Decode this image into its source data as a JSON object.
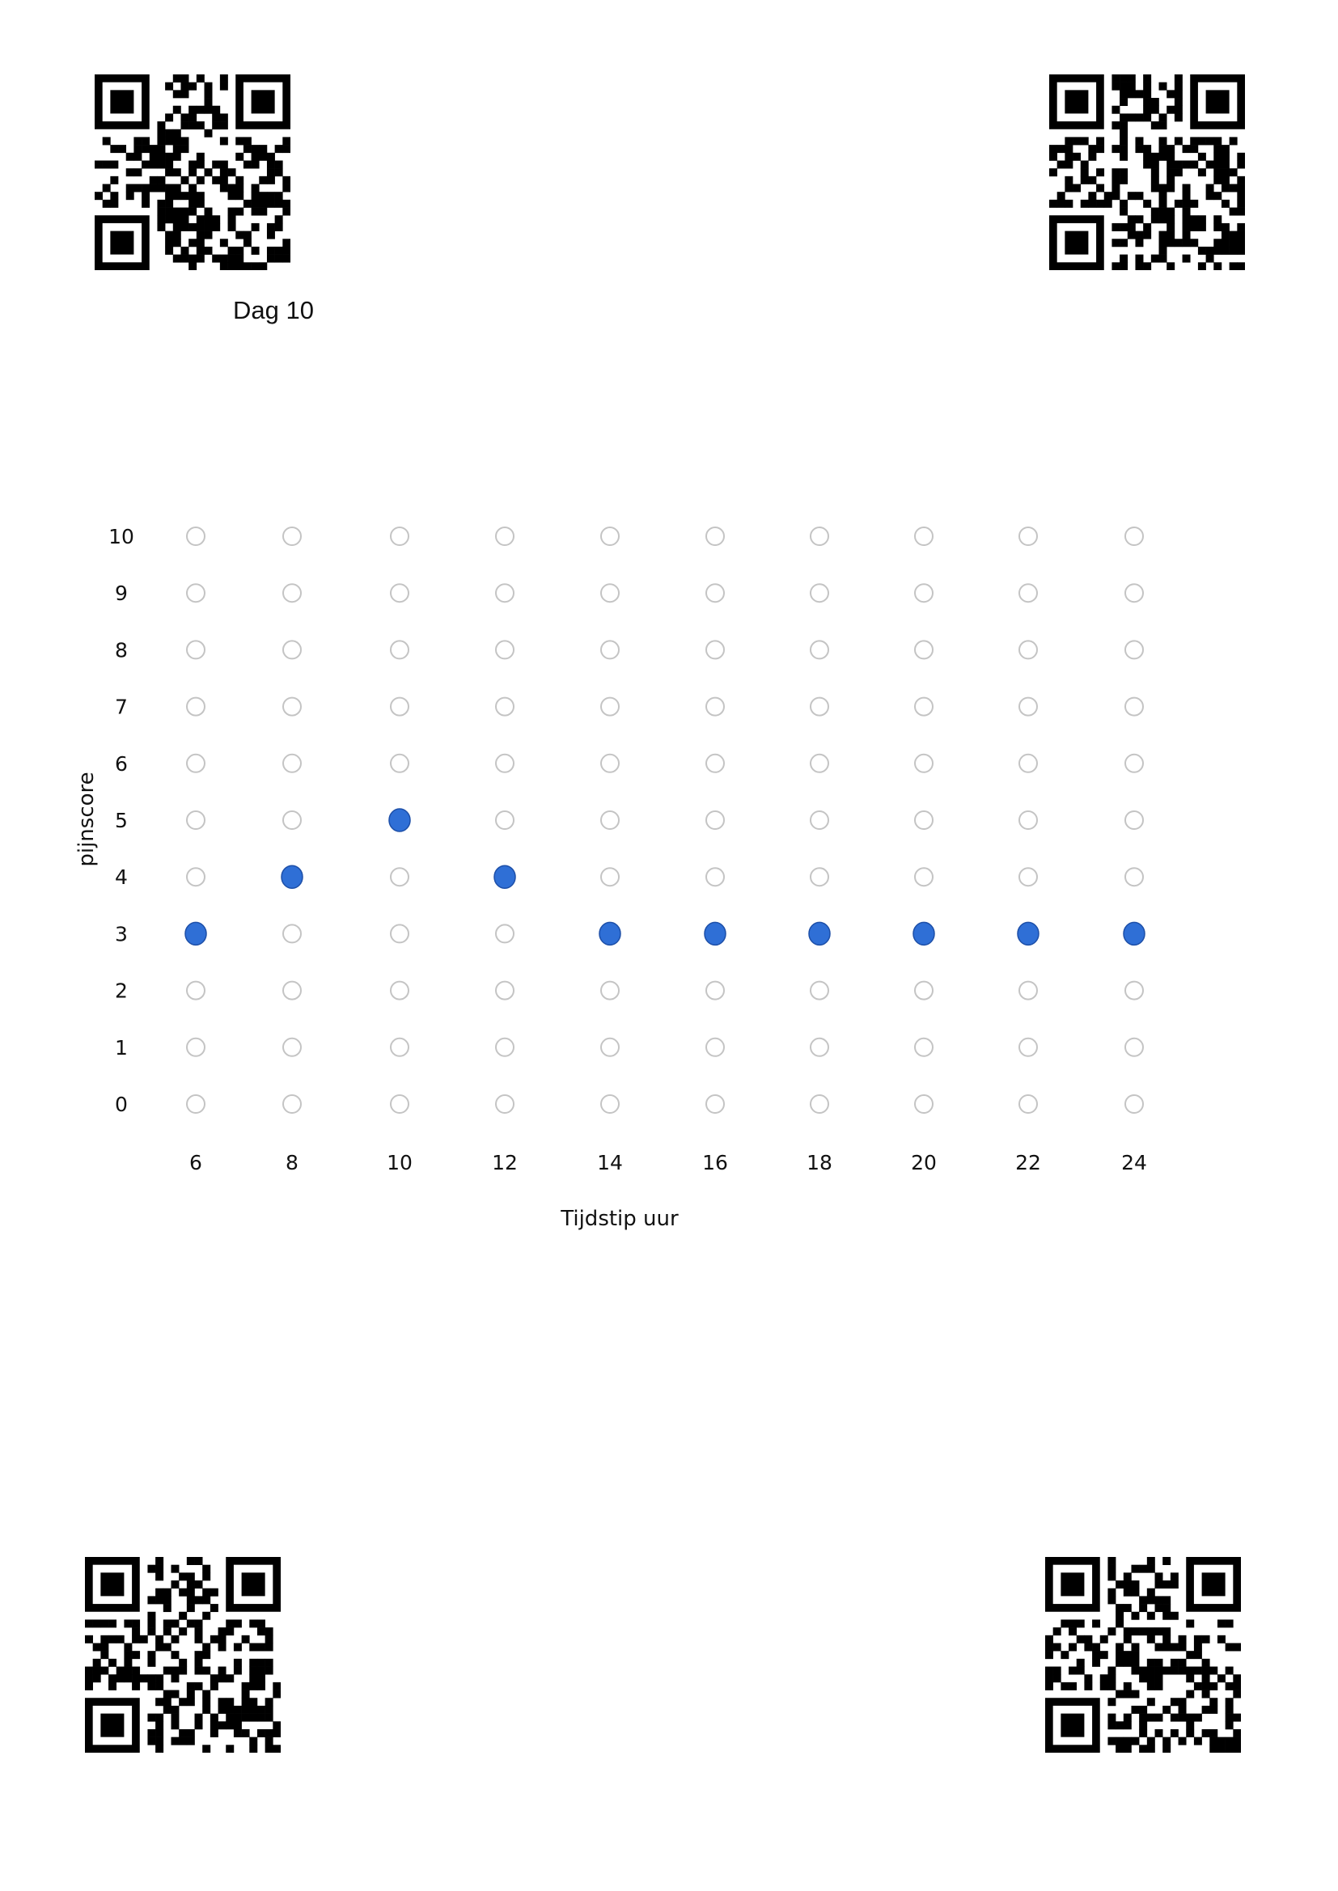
{
  "header": {
    "day_label": "Dag 10"
  },
  "chart_data": {
    "type": "scatter",
    "title": "",
    "xlabel": "Tijdstip uur",
    "ylabel": "pijnscore",
    "x_ticks": [
      "6",
      "8",
      "10",
      "12",
      "14",
      "16",
      "18",
      "20",
      "22",
      "24"
    ],
    "y_ticks": [
      "0",
      "1",
      "2",
      "3",
      "4",
      "5",
      "6",
      "7",
      "8",
      "9",
      "10"
    ],
    "xlim": [
      6,
      24
    ],
    "ylim": [
      0,
      10
    ],
    "grid": "empty circles at every hour/score combination",
    "x": [
      6,
      8,
      10,
      12,
      14,
      16,
      18,
      20,
      22,
      24
    ],
    "values": [
      3,
      4,
      5,
      4,
      3,
      3,
      3,
      3,
      3,
      3
    ],
    "marker_color": "#2f6fd6",
    "empty_marker_color": "#c4c4c4"
  },
  "qr_codes": [
    "qr-code-icon",
    "qr-code-icon",
    "qr-code-icon",
    "qr-code-icon"
  ]
}
